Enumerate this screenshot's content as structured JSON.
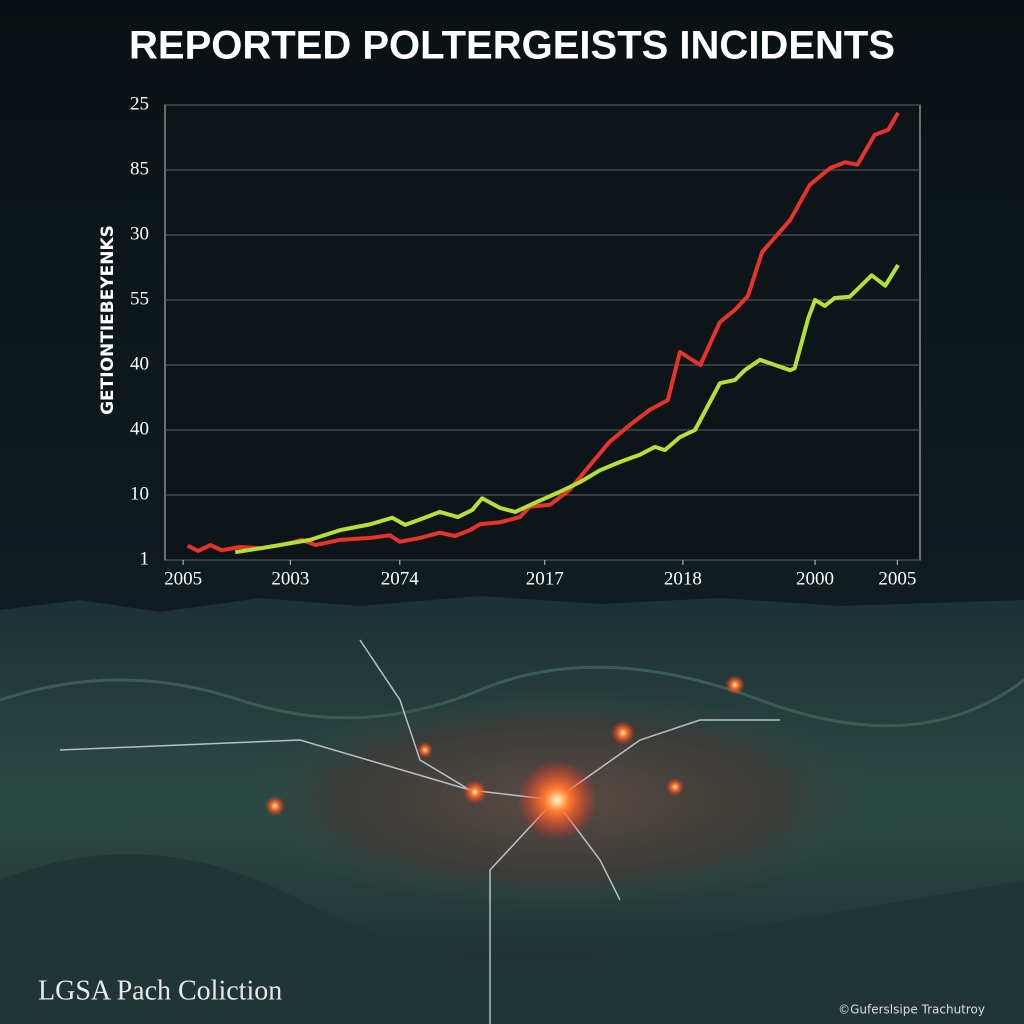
{
  "chart_data": {
    "type": "line",
    "title": "REPORTED POLTERGEISTS INCIDENTS",
    "y_label": "GETIONTIEBEYENKS",
    "footer_left": "LGSA Pach Coliction",
    "footer_right": "©Guferslsipe Trachutroy",
    "xlim": [
      0,
      100
    ],
    "ylim": [
      0,
      7
    ],
    "grid": true,
    "xticks": [
      {
        "value": 2.4,
        "label": "2005"
      },
      {
        "value": 16.6,
        "label": "2003"
      },
      {
        "value": 31.1,
        "label": "2074"
      },
      {
        "value": 50.3,
        "label": "2017"
      },
      {
        "value": 68.6,
        "label": "2018"
      },
      {
        "value": 86.1,
        "label": "2000"
      },
      {
        "value": 97.0,
        "label": "2005"
      }
    ],
    "yticks": [
      {
        "value": 0,
        "label": "1"
      },
      {
        "value": 1,
        "label": "10"
      },
      {
        "value": 2,
        "label": "40"
      },
      {
        "value": 3,
        "label": "40"
      },
      {
        "value": 4,
        "label": "55"
      },
      {
        "value": 5,
        "label": "30"
      },
      {
        "value": 6,
        "label": "85"
      },
      {
        "value": 7,
        "label": "25"
      }
    ],
    "series": [
      {
        "color": "#e8332a",
        "x": [
          3.0,
          4.4,
          6.0,
          7.5,
          9.9,
          12.8,
          16.6,
          18.1,
          19.9,
          23.2,
          27.2,
          29.8,
          31.1,
          33.8,
          36.4,
          38.4,
          40.4,
          41.7,
          44.4,
          47.0,
          48.3,
          51.0,
          53.6,
          56.3,
          58.9,
          61.6,
          64.2,
          66.6,
          68.2,
          70.9,
          73.5,
          75.5,
          77.2,
          79.1,
          82.8,
          85.4,
          88.1,
          90.1,
          91.7,
          94.0,
          95.8,
          97.1
        ],
        "values": [
          0.22,
          0.14,
          0.23,
          0.15,
          0.2,
          0.18,
          0.26,
          0.31,
          0.23,
          0.31,
          0.34,
          0.38,
          0.28,
          0.34,
          0.42,
          0.37,
          0.46,
          0.55,
          0.58,
          0.66,
          0.82,
          0.85,
          1.08,
          1.46,
          1.82,
          2.08,
          2.31,
          2.46,
          3.2,
          3.0,
          3.66,
          3.85,
          4.06,
          4.74,
          5.23,
          5.77,
          6.03,
          6.12,
          6.08,
          6.54,
          6.62,
          6.88
        ]
      },
      {
        "color": "#b5e03a",
        "x": [
          9.3,
          12.6,
          15.2,
          19.2,
          23.2,
          27.2,
          30.1,
          31.8,
          34.4,
          36.4,
          38.8,
          40.7,
          42.0,
          44.4,
          46.4,
          49.0,
          52.3,
          55.0,
          57.6,
          60.3,
          62.9,
          64.9,
          66.2,
          68.2,
          70.2,
          73.5,
          75.5,
          76.8,
          78.8,
          80.8,
          82.8,
          83.4,
          85.2,
          86.1,
          87.4,
          88.7,
          90.7,
          93.6,
          95.4,
          97.1
        ],
        "values": [
          0.12,
          0.18,
          0.23,
          0.31,
          0.46,
          0.55,
          0.65,
          0.54,
          0.65,
          0.74,
          0.66,
          0.77,
          0.95,
          0.8,
          0.74,
          0.88,
          1.05,
          1.2,
          1.38,
          1.51,
          1.62,
          1.74,
          1.69,
          1.89,
          2.0,
          2.72,
          2.77,
          2.92,
          3.08,
          3.0,
          2.92,
          2.95,
          3.72,
          4.0,
          3.91,
          4.03,
          4.05,
          4.38,
          4.22,
          4.54
        ]
      }
    ]
  }
}
